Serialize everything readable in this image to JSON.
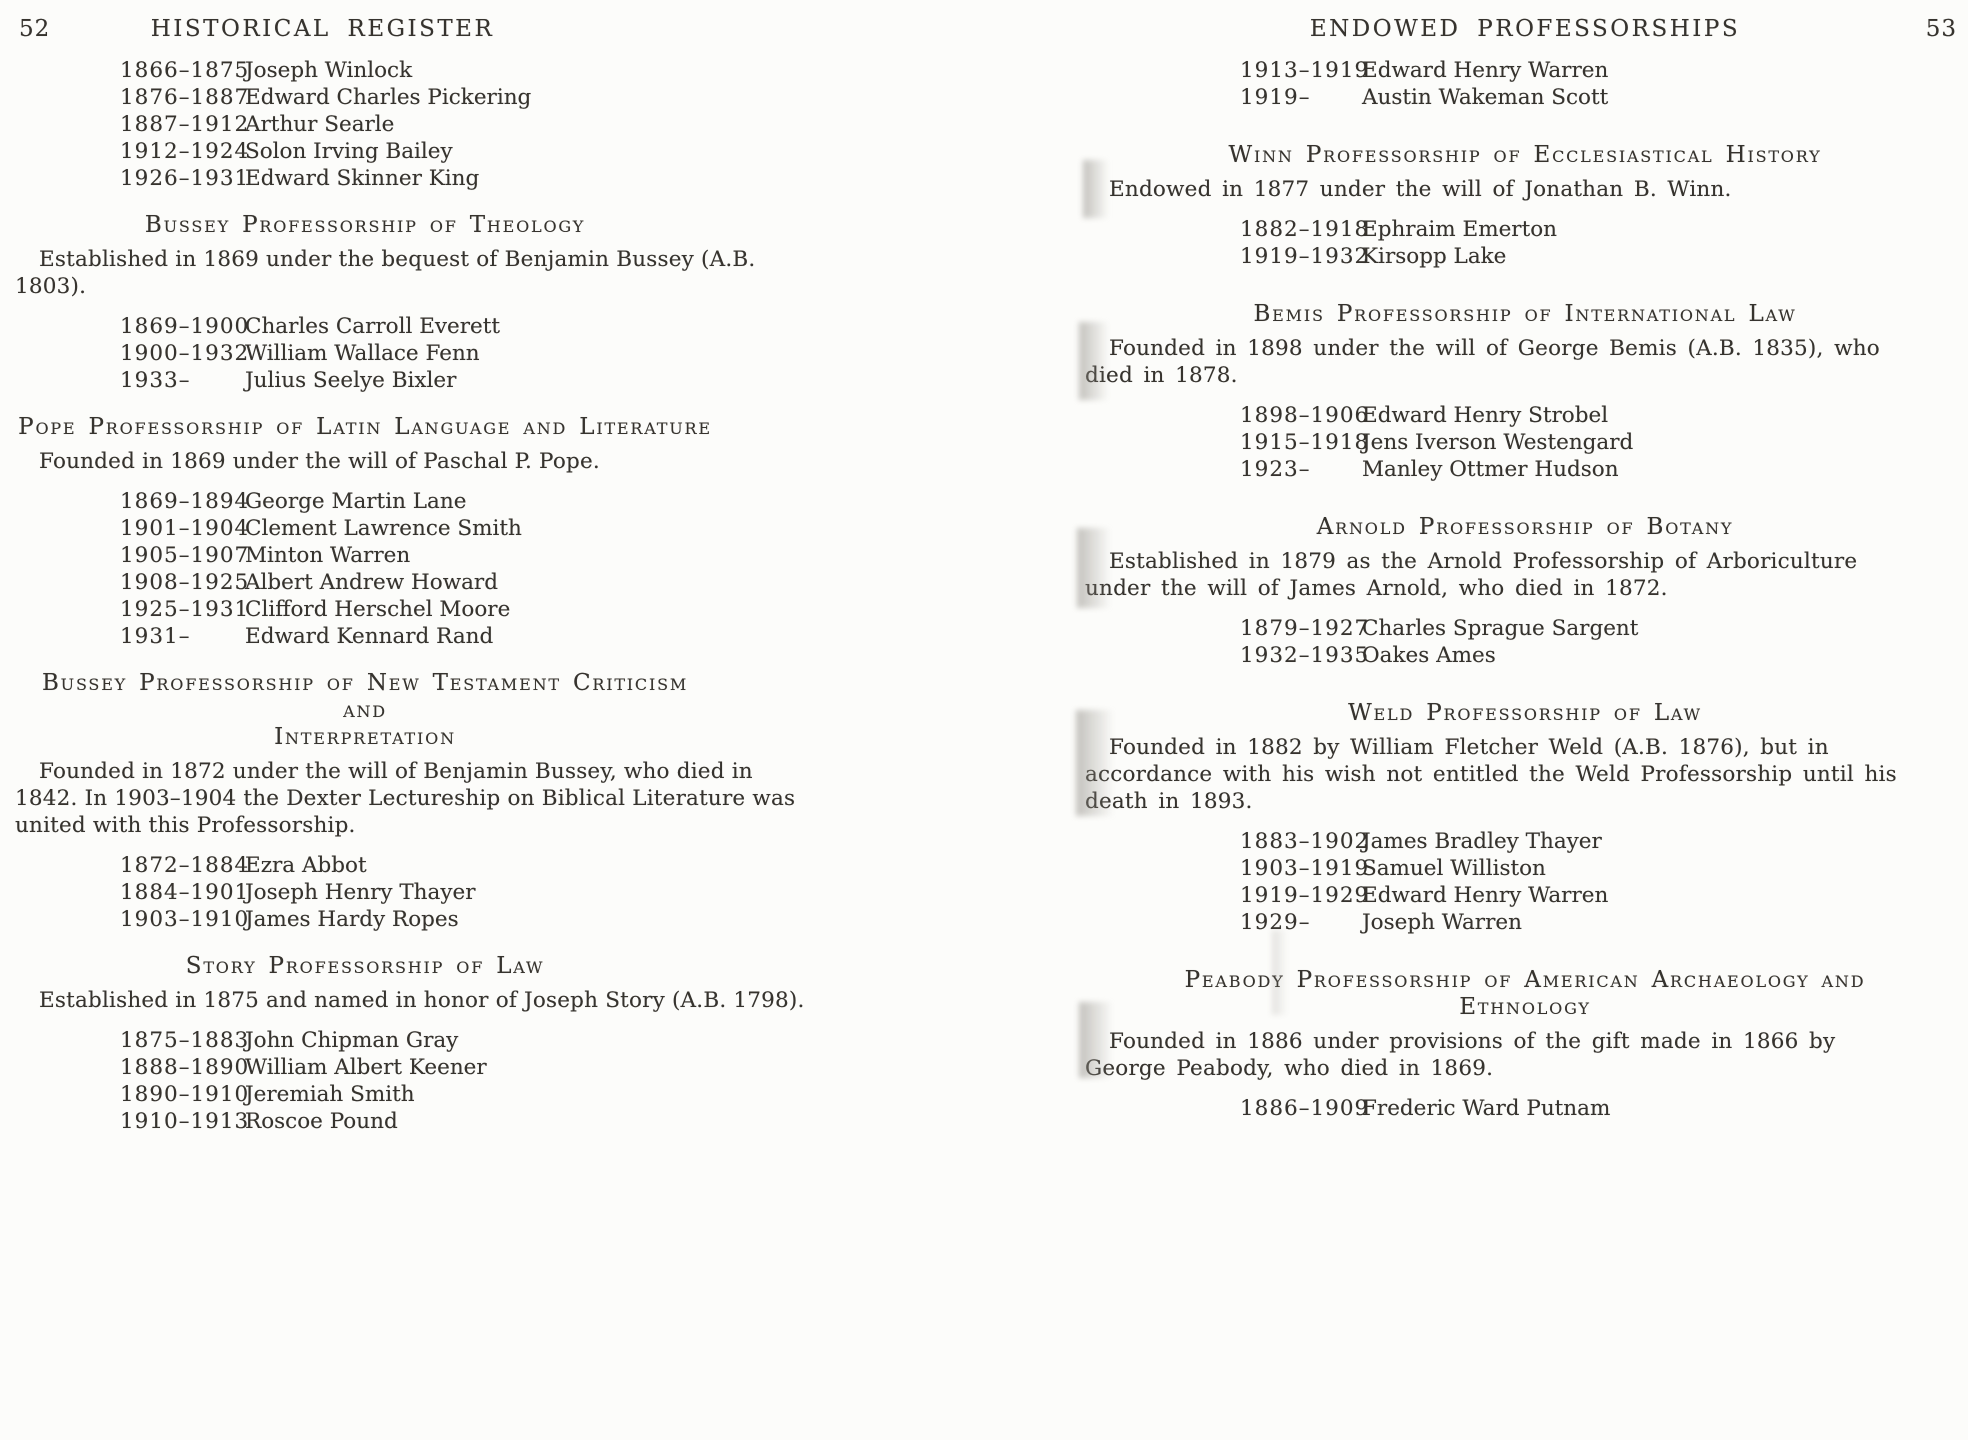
{
  "colors": {
    "paper": "#fcfcfa",
    "ink": "#36332e"
  },
  "left_page": {
    "page_number": "52",
    "running_head": "HISTORICAL REGISTER",
    "sections": [
      {
        "type": "list",
        "entries": [
          {
            "years": "1866–1875",
            "name": "Joseph Winlock"
          },
          {
            "years": "1876–1887",
            "name": "Edward Charles Pickering"
          },
          {
            "years": "1887–1912",
            "name": "Arthur Searle"
          },
          {
            "years": "1912–1924",
            "name": "Solon Irving Bailey"
          },
          {
            "years": "1926–1931",
            "name": "Edward Skinner King"
          }
        ]
      },
      {
        "type": "heading",
        "lines": [
          "Bussey Professorship of Theology"
        ]
      },
      {
        "type": "paragraph",
        "lines": [
          "Established in 1869 under the bequest of Benjamin Bussey (A.B.",
          "1803)."
        ]
      },
      {
        "type": "list",
        "entries": [
          {
            "years": "1869–1900",
            "name": "Charles Carroll Everett"
          },
          {
            "years": "1900–1932",
            "name": "William Wallace Fenn"
          },
          {
            "years": "1933–",
            "name": "Julius Seelye Bixler"
          }
        ]
      },
      {
        "type": "heading",
        "lines": [
          "Pope Professorship of Latin Language and Literature"
        ]
      },
      {
        "type": "paragraph",
        "lines": [
          "Founded in 1869 under the will of Paschal P. Pope."
        ]
      },
      {
        "type": "list",
        "entries": [
          {
            "years": "1869–1894",
            "name": "George Martin Lane"
          },
          {
            "years": "1901–1904",
            "name": "Clement Lawrence Smith"
          },
          {
            "years": "1905–1907",
            "name": "Minton Warren"
          },
          {
            "years": "1908–1925",
            "name": "Albert Andrew Howard"
          },
          {
            "years": "1925–1931",
            "name": "Clifford Herschel Moore"
          },
          {
            "years": "1931–",
            "name": "Edward Kennard Rand"
          }
        ]
      },
      {
        "type": "heading",
        "lines": [
          "Bussey Professorship of New Testament Criticism and",
          "Interpretation"
        ]
      },
      {
        "type": "paragraph",
        "lines": [
          "Founded in 1872 under the will of Benjamin Bussey, who died in",
          "1842.  In 1903–1904 the Dexter Lectureship on Biblical Literature was",
          "united with this Professorship."
        ]
      },
      {
        "type": "list",
        "entries": [
          {
            "years": "1872–1884",
            "name": "Ezra Abbot"
          },
          {
            "years": "1884–1901",
            "name": "Joseph Henry Thayer"
          },
          {
            "years": "1903–1910",
            "name": "James Hardy Ropes"
          }
        ]
      },
      {
        "type": "heading",
        "lines": [
          "Story Professorship of Law"
        ]
      },
      {
        "type": "paragraph",
        "lines": [
          "Established in 1875 and named in honor of Joseph Story (A.B. 1798)."
        ]
      },
      {
        "type": "list",
        "entries": [
          {
            "years": "1875–1883",
            "name": "John Chipman Gray"
          },
          {
            "years": "1888–1890",
            "name": "William Albert Keener"
          },
          {
            "years": "1890–1910",
            "name": "Jeremiah Smith"
          },
          {
            "years": "1910–1913",
            "name": "Roscoe Pound"
          }
        ]
      }
    ]
  },
  "right_page": {
    "page_number": "53",
    "running_head": "ENDOWED PROFESSORSHIPS",
    "sections": [
      {
        "type": "list",
        "entries": [
          {
            "years": "1913–1919",
            "name": "Edward Henry Warren"
          },
          {
            "years": "1919–",
            "name": "Austin Wakeman Scott"
          }
        ]
      },
      {
        "type": "heading",
        "lines": [
          "Winn Professorship of Ecclesiastical History"
        ]
      },
      {
        "type": "paragraph",
        "lines": [
          "Endowed in 1877 under the will of Jonathan B. Winn."
        ]
      },
      {
        "type": "list",
        "entries": [
          {
            "years": "1882–1918",
            "name": "Ephraim Emerton"
          },
          {
            "years": "1919–1932",
            "name": "Kirsopp Lake"
          }
        ]
      },
      {
        "type": "heading",
        "lines": [
          "Bemis Professorship of International Law"
        ]
      },
      {
        "type": "paragraph",
        "lines": [
          "Founded in 1898 under the will of George Bemis (A.B. 1835), who",
          "died in 1878."
        ]
      },
      {
        "type": "list",
        "entries": [
          {
            "years": "1898–1906",
            "name": "Edward Henry Strobel"
          },
          {
            "years": "1915–1918",
            "name": "Jens Iverson Westengard"
          },
          {
            "years": "1923–",
            "name": "Manley Ottmer Hudson"
          }
        ]
      },
      {
        "type": "heading",
        "lines": [
          "Arnold Professorship of Botany"
        ]
      },
      {
        "type": "paragraph",
        "lines": [
          "Established in 1879 as the Arnold Professorship of Arboriculture",
          "under the will of James Arnold, who died in 1872."
        ]
      },
      {
        "type": "list",
        "entries": [
          {
            "years": "1879–1927",
            "name": "Charles Sprague Sargent"
          },
          {
            "years": "1932–1935",
            "name": "Oakes Ames"
          }
        ]
      },
      {
        "type": "heading",
        "lines": [
          "Weld Professorship of Law"
        ]
      },
      {
        "type": "paragraph",
        "lines": [
          "Founded in 1882 by William Fletcher Weld (A.B. 1876), but in",
          "accordance with his wish not entitled the Weld Professorship until his",
          "death in 1893."
        ]
      },
      {
        "type": "list",
        "entries": [
          {
            "years": "1883–1902",
            "name": "James Bradley Thayer"
          },
          {
            "years": "1903–1919",
            "name": "Samuel Williston"
          },
          {
            "years": "1919–1929",
            "name": "Edward Henry Warren"
          },
          {
            "years": "1929–",
            "name": "Joseph Warren"
          }
        ]
      },
      {
        "type": "heading",
        "lines": [
          "Peabody Professorship of American Archaeology and",
          "Ethnology"
        ]
      },
      {
        "type": "paragraph",
        "lines": [
          "Founded in 1886 under provisions of the gift made in 1866 by",
          "George Peabody, who died in 1869."
        ]
      },
      {
        "type": "list",
        "entries": [
          {
            "years": "1886–1909",
            "name": "Frederic Ward Putnam"
          }
        ]
      }
    ]
  }
}
